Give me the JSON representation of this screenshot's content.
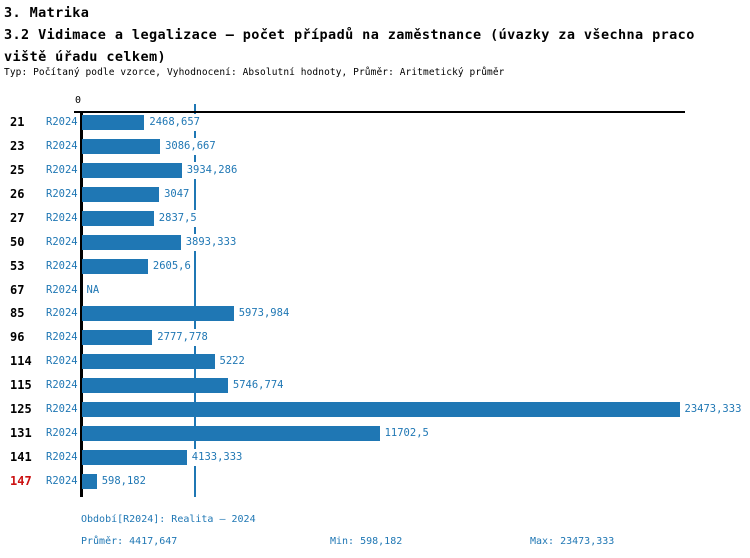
{
  "header": {
    "section_title": "3. Matrika",
    "chart_title_line1": "3.2 Vidimace a legalizace – počet případů na zaměstnance (úvazky za všechna praco",
    "chart_title_line2": "viště úřadu celkem)",
    "subtitle": "Typ: Počítaný podle vzorce, Vyhodnocení: Absolutní hodnoty, Průměr: Aritmetický průměr"
  },
  "chart_data": {
    "type": "bar",
    "orientation": "horizontal",
    "title": "3.2 Vidimace a legalizace – počet případů na zaměstnance (úvazky za všechna pracoviště úřadu celkem)",
    "period_label": "R2024",
    "zero_tick_label": "0",
    "categories": [
      "21",
      "23",
      "25",
      "26",
      "27",
      "50",
      "53",
      "67",
      "85",
      "96",
      "114",
      "115",
      "125",
      "131",
      "141",
      "147"
    ],
    "values": [
      2468.657,
      3086.667,
      3934.286,
      3047,
      2837.5,
      3893.333,
      2605.6,
      null,
      5973.984,
      2777.778,
      5222,
      5746.774,
      23473.333,
      11702.5,
      4133.333,
      598.182
    ],
    "value_labels": [
      "2468,657",
      "3086,667",
      "3934,286",
      "3047",
      "2837,5",
      "3893,333",
      "2605,6",
      "NA",
      "5973,984",
      "2777,778",
      "5222",
      "5746,774",
      "23473,333",
      "11702,5",
      "4133,333",
      "598,182"
    ],
    "highlight_category": "147",
    "average": 4417.647,
    "xlim": [
      0,
      23473.333
    ],
    "grid": false,
    "legend": "none",
    "colors": {
      "bar": "#1f77b4",
      "value_text": "#1f77b4",
      "period_text": "#1f77b4",
      "category_text": "#000000",
      "highlight_category_text": "#cc1111",
      "average_line": "#1f77b4",
      "axis": "#000000"
    }
  },
  "footer": {
    "period_info": "Období[R2024]: Realita – 2024",
    "average_label": "Průměr: 4417,647",
    "min_label": "Min: 598,182",
    "max_label": "Max: 23473,333"
  }
}
